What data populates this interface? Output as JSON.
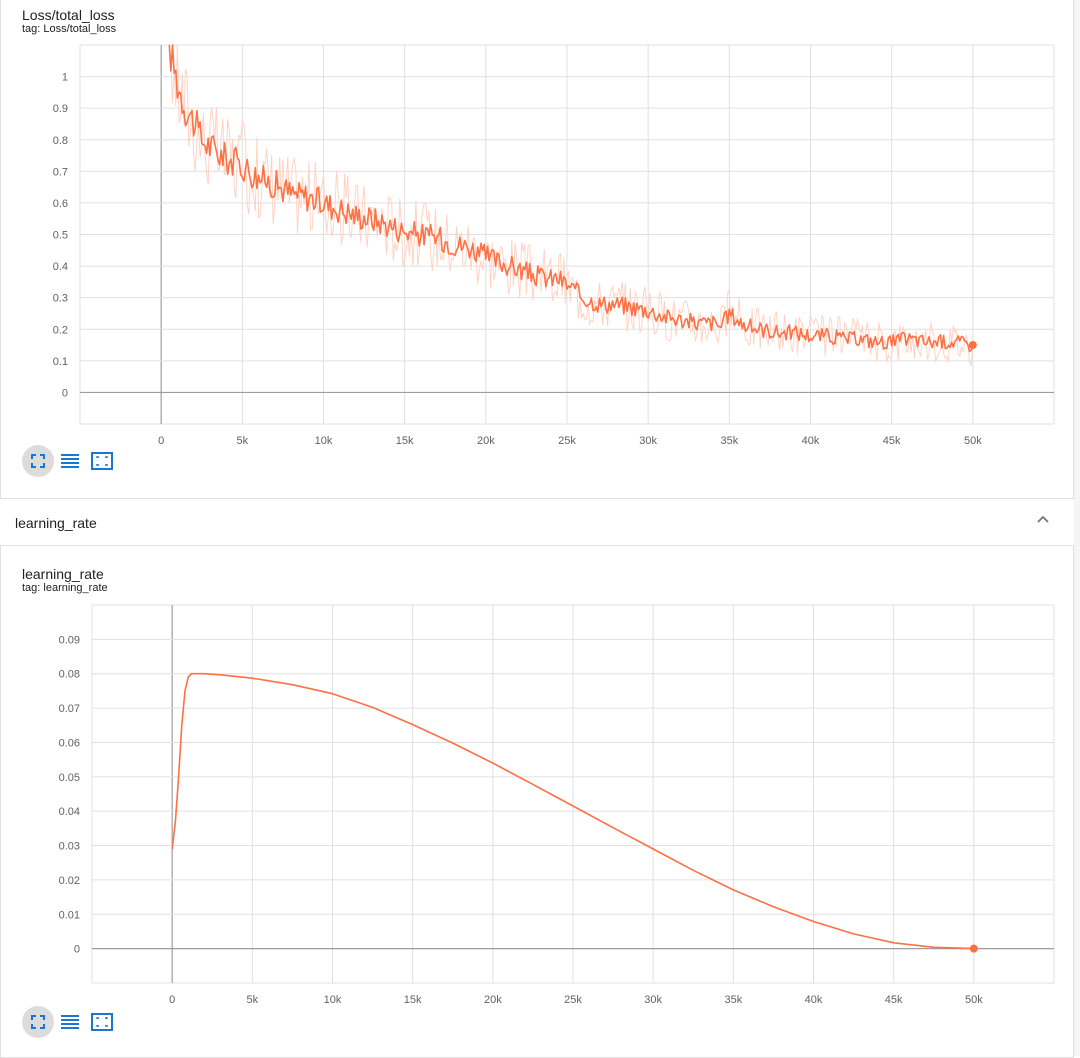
{
  "colors": {
    "series": "#ff7043",
    "smoothed_faint": "#ffd3c4",
    "grid": "#e0e0e0",
    "axis": "#9e9e9e",
    "tool_icon": "#1976d2"
  },
  "loss_card": {
    "title": "Loss/total_loss",
    "tag": "tag: Loss/total_loss",
    "toolbar": {
      "fit_icon": "fullscreen-icon",
      "data_icon": "list-icon",
      "range_icon": "fit-to-data-icon"
    }
  },
  "section": {
    "title": "learning_rate",
    "collapse_icon": "chevron-up-icon"
  },
  "lr_card": {
    "title": "learning_rate",
    "tag": "tag: learning_rate",
    "toolbar": {
      "fit_icon": "fullscreen-icon",
      "data_icon": "list-icon",
      "range_icon": "fit-to-data-icon"
    }
  },
  "chart_data": [
    {
      "type": "line",
      "title": "Loss/total_loss",
      "x_ticks": [
        "0",
        "5k",
        "10k",
        "15k",
        "20k",
        "25k",
        "30k",
        "35k",
        "40k",
        "45k",
        "50k"
      ],
      "y_ticks": [
        "0",
        "0.1",
        "0.2",
        "0.3",
        "0.4",
        "0.5",
        "0.6",
        "0.7",
        "0.8",
        "0.9",
        "1"
      ],
      "xlim": [
        -5000,
        55000
      ],
      "ylim": [
        -0.1,
        1.1
      ],
      "grid": true,
      "series": [
        {
          "x": [
            500,
            1000,
            1500,
            2000,
            2500,
            3000,
            3500,
            4000,
            5000,
            6000,
            7000,
            8000,
            9000,
            10000,
            11000,
            12000,
            13000,
            14000,
            15000,
            16000,
            17000,
            18000,
            19000,
            20000,
            21000,
            22000,
            23000,
            24000,
            24500,
            25000,
            26000,
            27000,
            28000,
            29000,
            30000,
            31000,
            32000,
            33000,
            34000,
            34500,
            35000,
            36000,
            37000,
            38000,
            39000,
            40000,
            41000,
            42000,
            43000,
            44000,
            45000,
            46000,
            47000,
            48000,
            49000,
            50000
          ],
          "y": [
            1.1,
            0.98,
            0.9,
            0.86,
            0.8,
            0.78,
            0.76,
            0.74,
            0.72,
            0.68,
            0.66,
            0.63,
            0.62,
            0.6,
            0.58,
            0.56,
            0.55,
            0.53,
            0.51,
            0.5,
            0.49,
            0.47,
            0.46,
            0.43,
            0.41,
            0.39,
            0.37,
            0.36,
            0.36,
            0.34,
            0.3,
            0.28,
            0.28,
            0.27,
            0.26,
            0.24,
            0.23,
            0.22,
            0.22,
            0.21,
            0.25,
            0.21,
            0.2,
            0.19,
            0.19,
            0.18,
            0.18,
            0.17,
            0.17,
            0.16,
            0.16,
            0.17,
            0.16,
            0.16,
            0.16,
            0.15
          ]
        }
      ]
    },
    {
      "type": "line",
      "title": "learning_rate",
      "x_ticks": [
        "0",
        "5k",
        "10k",
        "15k",
        "20k",
        "25k",
        "30k",
        "35k",
        "40k",
        "45k",
        "50k"
      ],
      "y_ticks": [
        "0",
        "0.01",
        "0.02",
        "0.03",
        "0.04",
        "0.05",
        "0.06",
        "0.07",
        "0.08",
        "0.09"
      ],
      "xlim": [
        -5000,
        55000
      ],
      "ylim": [
        -0.01,
        0.1
      ],
      "grid": true,
      "series": [
        {
          "x": [
            0,
            200,
            400,
            600,
            800,
            1000,
            1200,
            1500,
            2000,
            3000,
            5000,
            7500,
            10000,
            12500,
            15000,
            17500,
            20000,
            22500,
            25000,
            27500,
            30000,
            32500,
            35000,
            37500,
            40000,
            42500,
            45000,
            47500,
            50000
          ],
          "y": [
            0.029,
            0.037,
            0.05,
            0.065,
            0.075,
            0.079,
            0.08,
            0.08,
            0.08,
            0.0797,
            0.0787,
            0.0768,
            0.0742,
            0.0702,
            0.0652,
            0.0598,
            0.054,
            0.0478,
            0.0415,
            0.0352,
            0.029,
            0.0228,
            0.0171,
            0.0122,
            0.0079,
            0.0043,
            0.0017,
            0.0004,
            0.0
          ]
        }
      ]
    }
  ]
}
